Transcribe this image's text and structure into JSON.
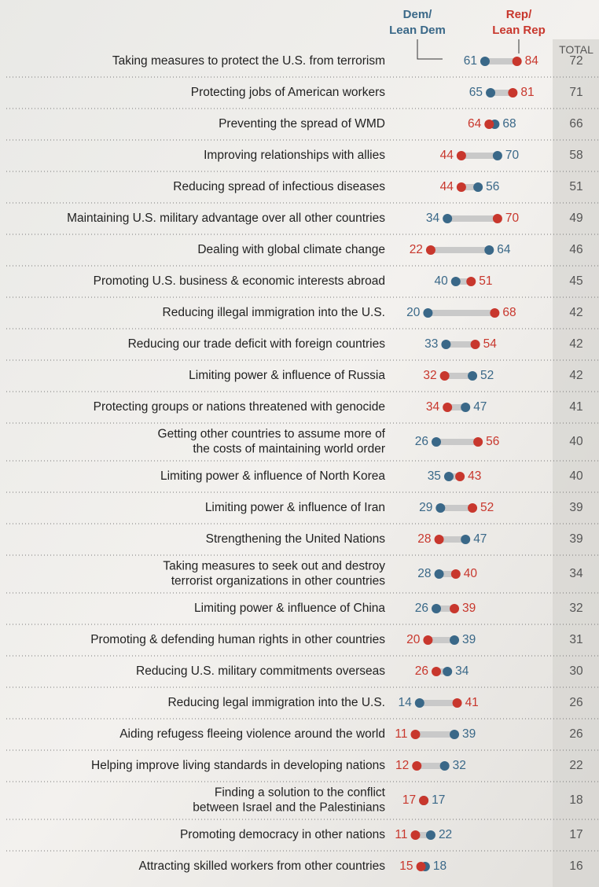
{
  "chart_data": {
    "type": "dot",
    "categories": [
      "Taking measures to protect the U.S. from terrorism",
      "Protecting jobs of American workers",
      "Preventing the spread of WMD",
      "Improving relationships with allies",
      "Reducing spread of infectious diseases",
      "Maintaining U.S. military advantage over all other countries",
      "Dealing with global climate change",
      "Promoting U.S. business & economic interests abroad",
      "Reducing illegal immigration into the U.S.",
      "Reducing our trade deficit with foreign countries",
      "Limiting power & influence of Russia",
      "Protecting groups or nations threatened with genocide",
      "Getting other countries to assume more of\nthe costs of maintaining world order",
      "Limiting power & influence of North Korea",
      "Limiting power & influence of Iran",
      "Strengthening the United Nations",
      "Taking measures to seek out and destroy\nterrorist organizations in other countries",
      "Limiting power & influence of China",
      "Promoting & defending human rights in other countries",
      "Reducing U.S. military commitments overseas",
      "Reducing legal immigration into the U.S.",
      "Aiding refugess fleeing violence around the world",
      "Helping improve living standards in developing nations",
      "Finding a solution to the conflict\nbetween Israel and the Palestinians",
      "Promoting democracy in other nations",
      "Attracting skilled workers from other countries"
    ],
    "series": [
      {
        "name": "Dem/\nLean Dem",
        "color": "#3a6888",
        "values": [
          61,
          65,
          68,
          70,
          56,
          34,
          64,
          40,
          20,
          33,
          52,
          47,
          26,
          35,
          29,
          47,
          28,
          26,
          39,
          34,
          14,
          39,
          32,
          17,
          22,
          18
        ]
      },
      {
        "name": "Rep/\nLean Rep",
        "color": "#c8372d",
        "values": [
          84,
          81,
          64,
          44,
          44,
          70,
          22,
          51,
          68,
          54,
          32,
          34,
          56,
          43,
          52,
          28,
          40,
          39,
          20,
          26,
          41,
          11,
          12,
          17,
          11,
          15
        ]
      }
    ],
    "total": {
      "name": "TOTAL",
      "values": [
        72,
        71,
        66,
        58,
        51,
        49,
        46,
        45,
        42,
        42,
        42,
        41,
        40,
        40,
        39,
        39,
        34,
        32,
        31,
        30,
        26,
        26,
        22,
        18,
        17,
        16
      ]
    },
    "xlim": [
      0,
      100
    ]
  }
}
